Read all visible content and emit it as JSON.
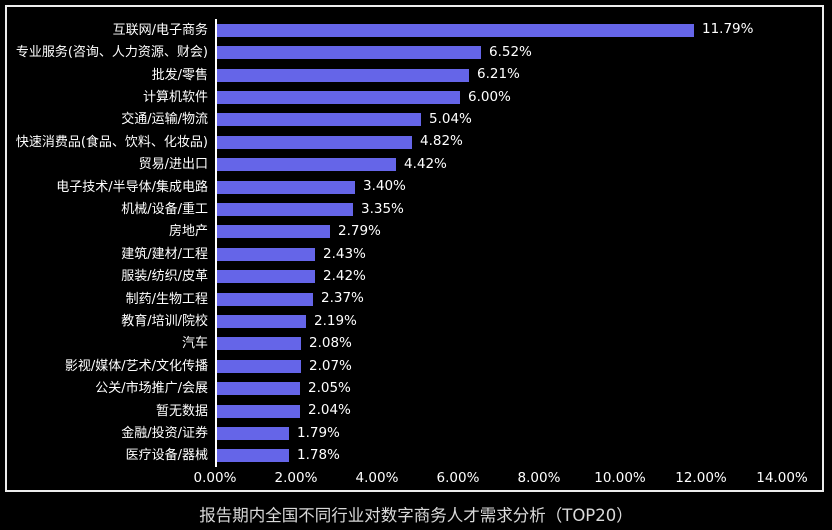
{
  "colors": {
    "background": "#000000",
    "frame_border": "#ececec",
    "bar": "#6565e8",
    "axis_line": "#ffffff",
    "label_text": "#ffffff",
    "title_text": "#d9d9d9"
  },
  "chart_data": {
    "type": "bar",
    "orientation": "horizontal",
    "title": "报告期内全国不同行业对数字商务人才需求分析（TOP20）",
    "grid": false,
    "legend": false,
    "categories": [
      "互联网/电子商务",
      "专业服务(咨询、人力资源、财会)",
      "批发/零售",
      "计算机软件",
      "交通/运输/物流",
      "快速消费品(食品、饮料、化妆品)",
      "贸易/进出口",
      "电子技术/半导体/集成电路",
      "机械/设备/重工",
      "房地产",
      "建筑/建材/工程",
      "服装/纺织/皮革",
      "制药/生物工程",
      "教育/培训/院校",
      "汽车",
      "影视/媒体/艺术/文化传播",
      "公关/市场推广/会展",
      "暂无数据",
      "金融/投资/证券",
      "医疗设备/器械"
    ],
    "values": [
      11.79,
      6.52,
      6.21,
      6.0,
      5.04,
      4.82,
      4.42,
      3.4,
      3.35,
      2.79,
      2.43,
      2.42,
      2.37,
      2.19,
      2.08,
      2.07,
      2.05,
      2.04,
      1.79,
      1.78
    ],
    "value_labels": [
      "11.79%",
      "6.52%",
      "6.21%",
      "6.00%",
      "5.04%",
      "4.82%",
      "4.42%",
      "3.40%",
      "3.35%",
      "2.79%",
      "2.43%",
      "2.42%",
      "2.37%",
      "2.19%",
      "2.08%",
      "2.07%",
      "2.05%",
      "2.04%",
      "1.79%",
      "1.78%"
    ],
    "x_axis": {
      "min": 0,
      "max": 14,
      "step": 2,
      "tick_labels": [
        "0.00%",
        "2.00%",
        "4.00%",
        "6.00%",
        "8.00%",
        "10.00%",
        "12.00%",
        "14.00%"
      ]
    }
  }
}
